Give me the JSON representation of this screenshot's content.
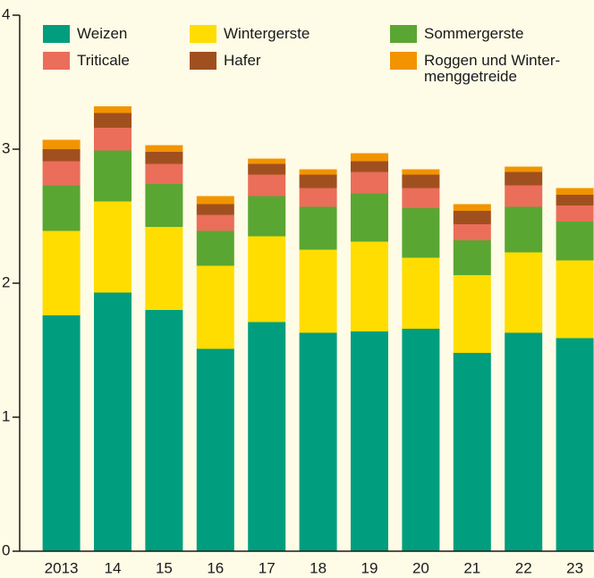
{
  "chart_data": {
    "type": "stacked_bar",
    "categories": [
      "2013",
      "14",
      "15",
      "16",
      "17",
      "18",
      "19",
      "20",
      "21",
      "22",
      "23"
    ],
    "series": [
      {
        "name": "Weizen",
        "color": "#009e7e",
        "values": [
          1.76,
          1.93,
          1.8,
          1.51,
          1.71,
          1.63,
          1.64,
          1.66,
          1.48,
          1.63,
          1.59
        ]
      },
      {
        "name": "Wintergerste",
        "color": "#ffdd00",
        "values": [
          0.63,
          0.68,
          0.62,
          0.62,
          0.64,
          0.62,
          0.67,
          0.53,
          0.58,
          0.6,
          0.58
        ]
      },
      {
        "name": "Sommergerste",
        "color": "#5aa632",
        "values": [
          0.34,
          0.38,
          0.32,
          0.26,
          0.3,
          0.32,
          0.36,
          0.37,
          0.26,
          0.34,
          0.29
        ]
      },
      {
        "name": "Triticale",
        "color": "#ea6e5a",
        "values": [
          0.18,
          0.17,
          0.15,
          0.12,
          0.16,
          0.14,
          0.16,
          0.15,
          0.12,
          0.16,
          0.12
        ]
      },
      {
        "name": "Hafer",
        "color": "#a0501e",
        "values": [
          0.09,
          0.11,
          0.09,
          0.08,
          0.08,
          0.1,
          0.08,
          0.1,
          0.1,
          0.1,
          0.08
        ]
      },
      {
        "name": "Roggen und Winter-\nmenggetreide",
        "color": "#f29400",
        "values": [
          0.07,
          0.05,
          0.05,
          0.06,
          0.04,
          0.04,
          0.06,
          0.04,
          0.05,
          0.04,
          0.05
        ]
      }
    ],
    "ylim": [
      0,
      4
    ],
    "yticks": [
      0,
      1,
      2,
      3,
      4
    ]
  }
}
